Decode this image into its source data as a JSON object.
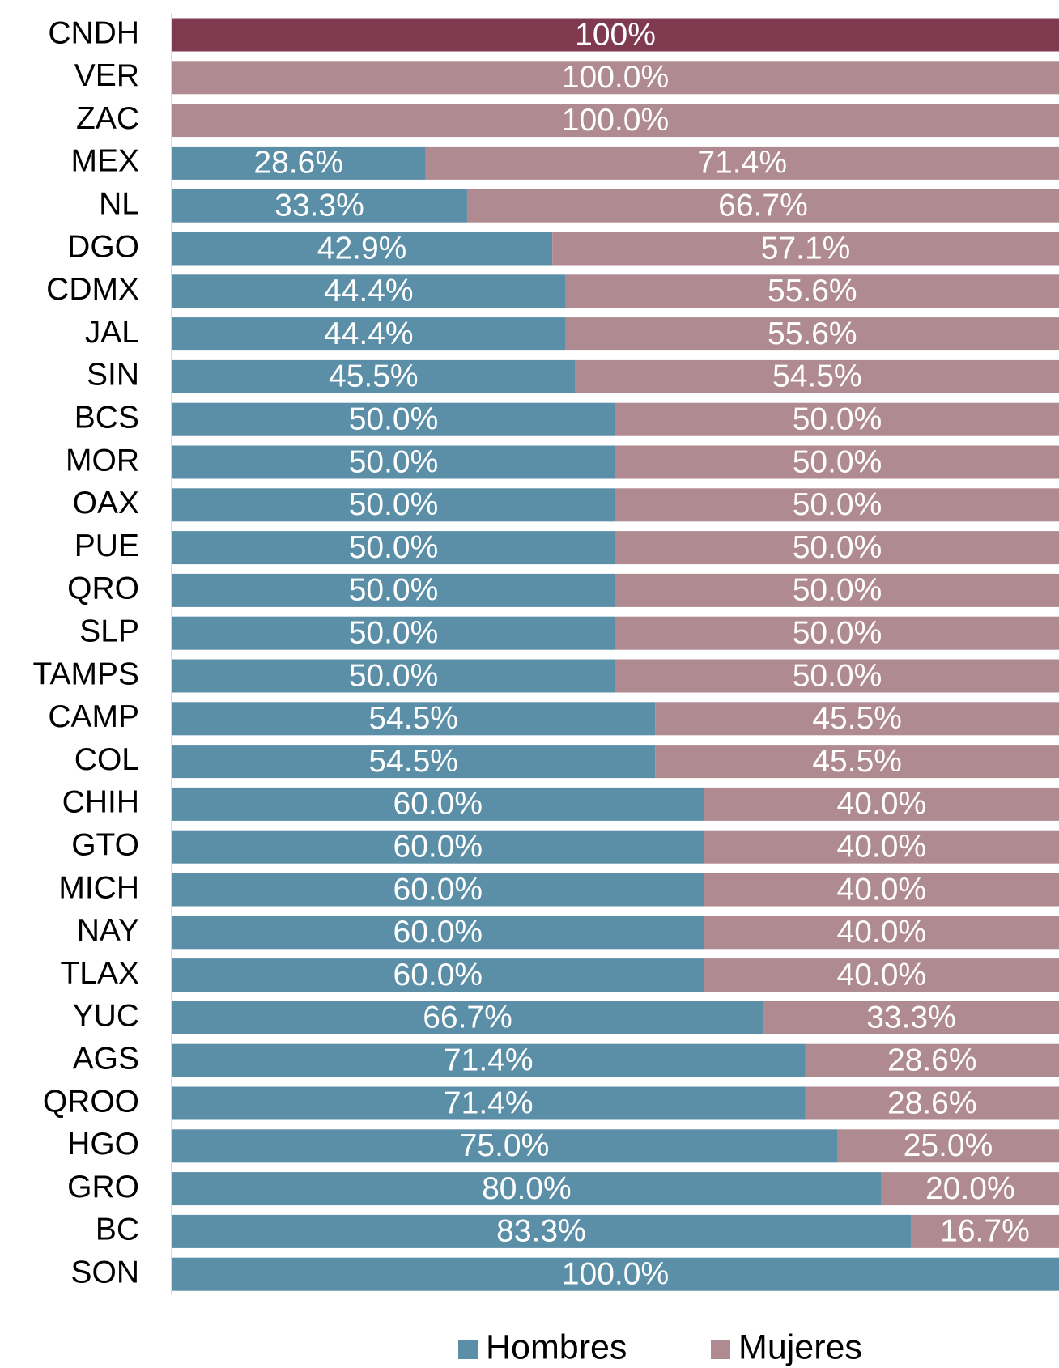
{
  "chart_data": {
    "type": "stacked-bar-horizontal",
    "categories": [
      "CNDH",
      "VER",
      "ZAC",
      "MEX",
      "NL",
      "DGO",
      "CDMX",
      "JAL",
      "SIN",
      "BCS",
      "MOR",
      "OAX",
      "PUE",
      "QRO",
      "SLP",
      "TAMPS",
      "CAMP",
      "COL",
      "CHIH",
      "GTO",
      "MICH",
      "NAY",
      "TLAX",
      "YUC",
      "AGS",
      "QROO",
      "HGO",
      "GRO",
      "BC",
      "SON"
    ],
    "xlim": [
      0,
      100
    ],
    "legend": "bottom",
    "series": [
      {
        "name": "Hombres",
        "color": "#5b8fa8",
        "values": [
          null,
          null,
          null,
          28.6,
          33.3,
          42.9,
          44.4,
          44.4,
          45.5,
          50,
          50,
          50,
          50,
          50,
          50,
          50,
          54.5,
          54.5,
          60,
          60,
          60,
          60,
          60,
          66.7,
          71.4,
          71.4,
          75,
          80,
          83.3,
          100
        ],
        "value_labels": [
          null,
          null,
          null,
          "28.6%",
          "33.3%",
          "42.9%",
          "44.4%",
          "44.4%",
          "45.5%",
          "50.0%",
          "50.0%",
          "50.0%",
          "50.0%",
          "50.0%",
          "50.0%",
          "50.0%",
          "54.5%",
          "54.5%",
          "60.0%",
          "60.0%",
          "60.0%",
          "60.0%",
          "60.0%",
          "66.7%",
          "71.4%",
          "71.4%",
          "75.0%",
          "80.0%",
          "83.3%",
          "100.0%"
        ]
      },
      {
        "name": "Mujeres",
        "color": "#b08a91",
        "values": [
          null,
          100,
          100,
          71.4,
          66.7,
          57.1,
          55.6,
          55.6,
          54.5,
          50,
          50,
          50,
          50,
          50,
          50,
          50,
          45.5,
          45.5,
          40,
          40,
          40,
          40,
          40,
          33.3,
          28.6,
          28.6,
          25,
          20,
          16.7,
          null
        ],
        "value_labels": [
          null,
          "100.0%",
          "100.0%",
          "71.4%",
          "66.7%",
          "57.1%",
          "55.6%",
          "55.6%",
          "54.5%",
          "50.0%",
          "50.0%",
          "50.0%",
          "50.0%",
          "50.0%",
          "50.0%",
          "50.0%",
          "45.5%",
          "45.5%",
          "40.0%",
          "40.0%",
          "40.0%",
          "40.0%",
          "40.0%",
          "33.3%",
          "28.6%",
          "28.6%",
          "25.0%",
          "20.0%",
          "16.7%",
          null
        ]
      },
      {
        "color": "#7f3a50",
        "values": [
          100,
          null,
          null,
          null,
          null,
          null,
          null,
          null,
          null,
          null,
          null,
          null,
          null,
          null,
          null,
          null,
          null,
          null,
          null,
          null,
          null,
          null,
          null,
          null,
          null,
          null,
          null,
          null,
          null,
          null
        ],
        "value_labels": [
          "100%",
          null,
          null,
          null,
          null,
          null,
          null,
          null,
          null,
          null,
          null,
          null,
          null,
          null,
          null,
          null,
          null,
          null,
          null,
          null,
          null,
          null,
          null,
          null,
          null,
          null,
          null,
          null,
          null,
          null
        ]
      }
    ]
  }
}
